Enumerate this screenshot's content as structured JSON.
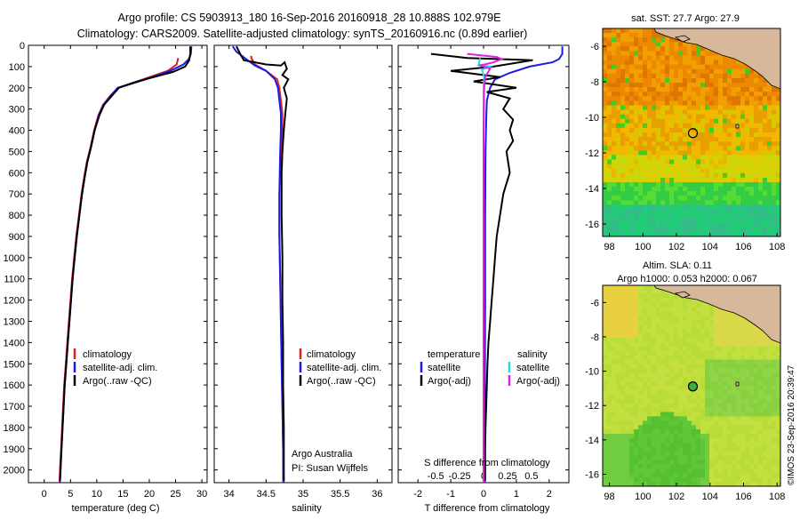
{
  "header": {
    "line1": "Argo profile: CS 5903913_180 16-Sep-2016 20160918_28 10.888S 102.979E",
    "line2": "Climatology: CARS2009. Satellite-adjusted climatology: synTS_20160916.nc (0.89d earlier)"
  },
  "colors": {
    "climatology": "#dd2020",
    "satellite": "#1a1aee",
    "argo": "#000000",
    "sal_satellite": "#22dddd",
    "sal_argo": "#dd22dd"
  },
  "chart_data": [
    {
      "type": "line",
      "xlabel": "temperature (deg C)",
      "xlim": [
        -3,
        31
      ],
      "ylim": [
        2060,
        0
      ],
      "xticks": [
        0,
        5,
        10,
        15,
        20,
        25,
        30
      ],
      "yticks": [
        0,
        100,
        200,
        300,
        400,
        500,
        600,
        700,
        800,
        900,
        1000,
        1100,
        1200,
        1300,
        1400,
        1500,
        1600,
        1700,
        1800,
        1900,
        2000
      ],
      "legend": [
        "climatology",
        "satellite-adj. clim.",
        "Argo(..raw -QC)"
      ],
      "series": [
        {
          "name": "climatology",
          "color": "#dd2020",
          "points": [
            [
              25.5,
              60
            ],
            [
              25.2,
              90
            ],
            [
              23.5,
              120
            ],
            [
              20,
              150
            ],
            [
              16.5,
              180
            ],
            [
              14,
              200
            ],
            [
              12.5,
              240
            ],
            [
              11.2,
              280
            ],
            [
              10.3,
              330
            ],
            [
              9.5,
              400
            ],
            [
              8.8,
              480
            ],
            [
              8.1,
              550
            ],
            [
              7.6,
              620
            ],
            [
              7.1,
              700
            ],
            [
              6.6,
              800
            ],
            [
              6.1,
              900
            ],
            [
              5.7,
              1000
            ],
            [
              5.3,
              1100
            ],
            [
              5,
              1200
            ],
            [
              4.7,
              1300
            ],
            [
              4.4,
              1400
            ],
            [
              4.1,
              1500
            ],
            [
              3.8,
              1600
            ],
            [
              3.6,
              1700
            ],
            [
              3.4,
              1800
            ],
            [
              3.2,
              1900
            ],
            [
              3,
              2000
            ],
            [
              2.9,
              2060
            ]
          ]
        },
        {
          "name": "satellite-adj. clim.",
          "color": "#1a1aee",
          "points": [
            [
              28,
              5
            ],
            [
              27.9,
              40
            ],
            [
              27.5,
              65
            ],
            [
              26.5,
              90
            ],
            [
              24,
              120
            ],
            [
              20.5,
              150
            ],
            [
              16.7,
              180
            ],
            [
              14,
              200
            ],
            [
              12.6,
              240
            ],
            [
              11.3,
              280
            ],
            [
              10.4,
              330
            ],
            [
              9.6,
              400
            ],
            [
              8.9,
              480
            ],
            [
              8.2,
              550
            ],
            [
              7.7,
              620
            ],
            [
              7.2,
              700
            ],
            [
              6.7,
              800
            ],
            [
              6.2,
              900
            ],
            [
              5.8,
              1000
            ],
            [
              5.4,
              1100
            ],
            [
              5.1,
              1200
            ],
            [
              4.8,
              1300
            ],
            [
              4.5,
              1400
            ],
            [
              4.2,
              1500
            ],
            [
              3.9,
              1600
            ],
            [
              3.7,
              1700
            ],
            [
              3.5,
              1800
            ],
            [
              3.3,
              1900
            ],
            [
              3.1,
              2000
            ],
            [
              3,
              2060
            ]
          ]
        },
        {
          "name": "Argo(..raw -QC)",
          "color": "#000000",
          "points": [
            [
              27.8,
              5
            ],
            [
              27.8,
              40
            ],
            [
              27.6,
              70
            ],
            [
              26.8,
              100
            ],
            [
              24.5,
              125
            ],
            [
              20,
              155
            ],
            [
              16.5,
              180
            ],
            [
              14.2,
              200
            ],
            [
              12.8,
              240
            ],
            [
              11.4,
              280
            ],
            [
              10.5,
              330
            ],
            [
              9.6,
              400
            ],
            [
              8.9,
              480
            ],
            [
              8.2,
              550
            ],
            [
              7.7,
              620
            ],
            [
              7.2,
              700
            ],
            [
              6.7,
              800
            ],
            [
              6.2,
              900
            ],
            [
              5.8,
              1000
            ],
            [
              5.4,
              1100
            ],
            [
              5.1,
              1200
            ],
            [
              4.8,
              1300
            ],
            [
              4.5,
              1400
            ],
            [
              4.2,
              1500
            ],
            [
              3.9,
              1600
            ],
            [
              3.7,
              1700
            ],
            [
              3.5,
              1800
            ],
            [
              3.3,
              1900
            ],
            [
              3.1,
              2000
            ],
            [
              3,
              2050
            ]
          ]
        }
      ]
    },
    {
      "type": "line",
      "xlabel": "salinity",
      "xlim": [
        33.8,
        36.2
      ],
      "ylim": [
        2060,
        0
      ],
      "xticks": [
        34,
        34.5,
        35,
        35.5,
        36
      ],
      "legend": [
        "climatology",
        "satellite-adj. clim.",
        "Argo(..raw -QC)"
      ],
      "annotation": [
        "Argo Australia",
        "PI: Susan Wijffels"
      ],
      "series": [
        {
          "name": "climatology",
          "color": "#dd2020",
          "points": [
            [
              34.3,
              50
            ],
            [
              34.3,
              60
            ],
            [
              34.35,
              90
            ],
            [
              34.5,
              120
            ],
            [
              34.65,
              160
            ],
            [
              34.68,
              200
            ],
            [
              34.7,
              260
            ],
            [
              34.72,
              320
            ],
            [
              34.72,
              400
            ],
            [
              34.7,
              500
            ],
            [
              34.68,
              700
            ],
            [
              34.68,
              900
            ],
            [
              34.69,
              1100
            ],
            [
              34.7,
              1300
            ],
            [
              34.71,
              1500
            ],
            [
              34.72,
              1700
            ],
            [
              34.73,
              1900
            ],
            [
              34.73,
              2060
            ]
          ]
        },
        {
          "name": "satellite-adj. clim.",
          "color": "#1a1aee",
          "points": [
            [
              34.05,
              5
            ],
            [
              34.1,
              30
            ],
            [
              34.25,
              70
            ],
            [
              34.35,
              95
            ],
            [
              34.5,
              120
            ],
            [
              34.62,
              160
            ],
            [
              34.66,
              200
            ],
            [
              34.68,
              260
            ],
            [
              34.7,
              320
            ],
            [
              34.7,
              400
            ],
            [
              34.69,
              500
            ],
            [
              34.68,
              700
            ],
            [
              34.68,
              900
            ],
            [
              34.69,
              1100
            ],
            [
              34.7,
              1300
            ],
            [
              34.71,
              1500
            ],
            [
              34.72,
              1700
            ],
            [
              34.73,
              1900
            ],
            [
              34.74,
              2060
            ]
          ]
        },
        {
          "name": "Argo(..raw -QC)",
          "color": "#000000",
          "points": [
            [
              34.1,
              5
            ],
            [
              34.15,
              40
            ],
            [
              34.2,
              70
            ],
            [
              34.5,
              90
            ],
            [
              34.7,
              95
            ],
            [
              34.75,
              80
            ],
            [
              34.78,
              110
            ],
            [
              34.72,
              140
            ],
            [
              34.8,
              160
            ],
            [
              34.74,
              200
            ],
            [
              34.78,
              250
            ],
            [
              34.76,
              320
            ],
            [
              34.74,
              400
            ],
            [
              34.72,
              500
            ],
            [
              34.71,
              600
            ],
            [
              34.71,
              800
            ],
            [
              34.72,
              1000
            ],
            [
              34.72,
              1200
            ],
            [
              34.73,
              1400
            ],
            [
              34.73,
              1600
            ],
            [
              34.74,
              1800
            ],
            [
              34.74,
              2000
            ],
            [
              34.74,
              2050
            ]
          ]
        }
      ]
    },
    {
      "type": "line",
      "xlabel": "T difference from climatology",
      "xlabel2": "S difference from climatology",
      "xlim": [
        -2.6,
        2.6
      ],
      "ylim": [
        2060,
        0
      ],
      "xticks": [
        -2,
        -1,
        0,
        1,
        2
      ],
      "xticks2": [
        -0.5,
        -0.25,
        0,
        0.25,
        0.5
      ],
      "legend": [
        "temperature",
        "satellite",
        "Argo(-adj)",
        "salinity",
        "satellite",
        "Argo(-adj)"
      ],
      "series": [
        {
          "name": "temperature satellite",
          "color": "#1a1aee",
          "points": [
            [
              2.4,
              5
            ],
            [
              2.4,
              40
            ],
            [
              2.3,
              65
            ],
            [
              2.1,
              80
            ],
            [
              1.4,
              100
            ],
            [
              0.8,
              130
            ],
            [
              0.35,
              160
            ],
            [
              0.2,
              200
            ],
            [
              0.1,
              260
            ],
            [
              0.08,
              350
            ],
            [
              0.06,
              500
            ],
            [
              0.05,
              800
            ],
            [
              0.05,
              1200
            ],
            [
              0.04,
              1600
            ],
            [
              0.04,
              2060
            ]
          ]
        },
        {
          "name": "temperature Argo(-adj)",
          "color": "#000000",
          "points": [
            [
              -1.6,
              40
            ],
            [
              -0.5,
              60
            ],
            [
              1.5,
              70
            ],
            [
              0.3,
              100
            ],
            [
              -1,
              120
            ],
            [
              0.5,
              150
            ],
            [
              -0.3,
              170
            ],
            [
              1.0,
              200
            ],
            [
              0.1,
              220
            ],
            [
              0.8,
              250
            ],
            [
              0.6,
              300
            ],
            [
              0.9,
              350
            ],
            [
              0.8,
              400
            ],
            [
              0.9,
              450
            ],
            [
              0.7,
              500
            ],
            [
              0.8,
              600
            ],
            [
              0.6,
              700
            ],
            [
              0.5,
              800
            ],
            [
              0.4,
              900
            ],
            [
              0.35,
              1000
            ],
            [
              0.3,
              1100
            ],
            [
              0.25,
              1200
            ],
            [
              0.2,
              1300
            ],
            [
              0.15,
              1400
            ],
            [
              0.12,
              1500
            ],
            [
              0.1,
              1600
            ],
            [
              0.08,
              1700
            ],
            [
              0.06,
              1800
            ],
            [
              0.05,
              1900
            ],
            [
              0.05,
              2000
            ],
            [
              0.05,
              2050
            ]
          ]
        },
        {
          "name": "salinity satellite",
          "color": "#22dddd",
          "points": [
            [
              -0.1,
              60
            ],
            [
              -0.15,
              90
            ],
            [
              0.2,
              100
            ],
            [
              -0.05,
              115
            ],
            [
              0.02,
              150
            ],
            [
              0.0,
              200
            ],
            [
              0.0,
              400
            ],
            [
              0.0,
              800
            ],
            [
              0.0,
              1200
            ],
            [
              0.0,
              1600
            ],
            [
              0.0,
              2060
            ]
          ]
        },
        {
          "name": "salinity Argo(-adj)",
          "color": "#dd22dd",
          "points": [
            [
              -0.5,
              40
            ],
            [
              0.4,
              55
            ],
            [
              0.55,
              65
            ],
            [
              0.3,
              80
            ],
            [
              -0.1,
              95
            ],
            [
              0.2,
              110
            ],
            [
              0.05,
              150
            ],
            [
              0.02,
              200
            ],
            [
              0.0,
              400
            ],
            [
              0.0,
              800
            ],
            [
              0.0,
              1200
            ],
            [
              0.0,
              1600
            ],
            [
              0.0,
              2060
            ]
          ]
        }
      ]
    },
    {
      "type": "heatmap",
      "title": "sat. SST: 27.7 Argo: 27.9",
      "xlim": [
        97.6,
        108.2
      ],
      "ylim": [
        -16.7,
        -5.0
      ],
      "xticks": [
        98,
        100,
        102,
        104,
        106,
        108
      ],
      "yticks": [
        -6,
        -8,
        -10,
        -12,
        -14,
        -16
      ],
      "marker": [
        102.979,
        -10.888
      ]
    },
    {
      "type": "heatmap",
      "title_line1": "Altim. SLA: 0.11",
      "title_line2": "Argo h1000: 0.053 h2000: 0.067",
      "xlim": [
        97.6,
        108.2
      ],
      "ylim": [
        -16.7,
        -5.0
      ],
      "xticks": [
        98,
        100,
        102,
        104,
        106,
        108
      ],
      "yticks": [
        -6,
        -8,
        -10,
        -12,
        -14,
        -16
      ],
      "marker": [
        102.979,
        -10.888
      ]
    }
  ],
  "footer": {
    "stamp": "©IMOS 23-Sep-2016 20:39:47"
  }
}
